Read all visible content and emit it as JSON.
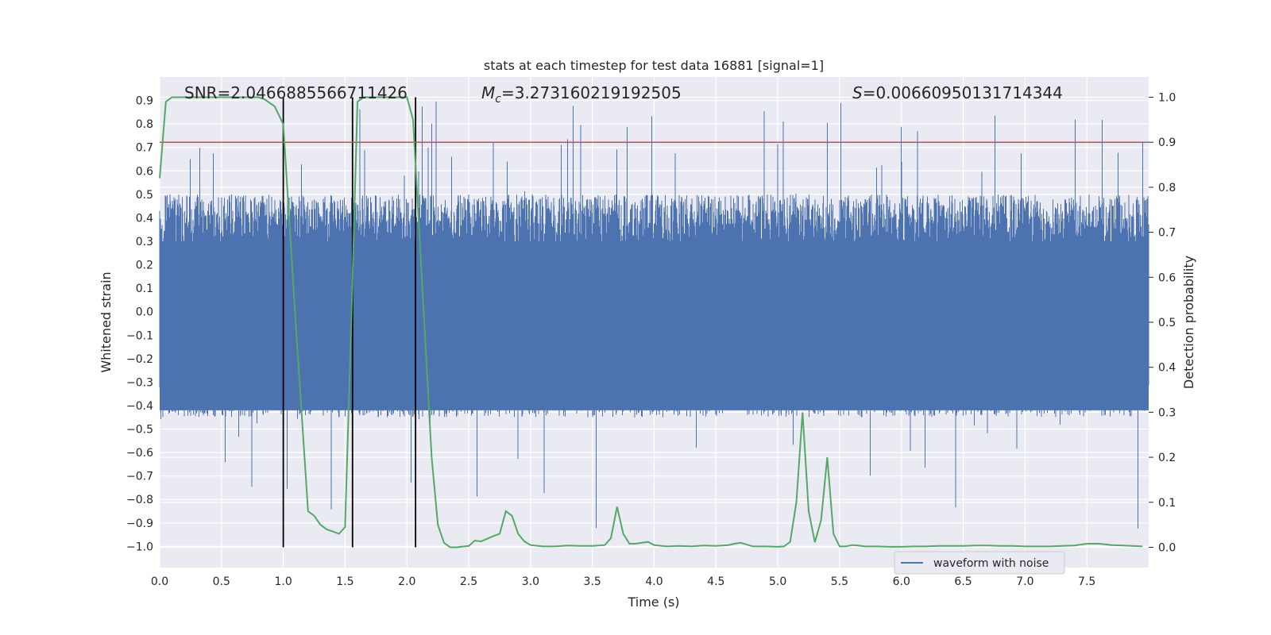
{
  "chart_data": {
    "type": "line",
    "title": "stats at each timestep for test data 16881 [signal=1]",
    "xlabel": "Time (s)",
    "ylabel": "Whitened strain",
    "y2label": "Detection probability",
    "xlim": [
      0.0,
      8.0
    ],
    "ylim": [
      -1.09,
      1.0
    ],
    "y2lim": [
      -0.045,
      1.045
    ],
    "xticks": [
      "0.0",
      "0.5",
      "1.0",
      "1.5",
      "2.0",
      "2.5",
      "3.0",
      "3.5",
      "4.0",
      "4.5",
      "5.0",
      "5.5",
      "6.0",
      "6.5",
      "7.0",
      "7.5"
    ],
    "yticks": [
      "0.9",
      "0.8",
      "0.7",
      "0.6",
      "0.5",
      "0.4",
      "0.3",
      "0.2",
      "0.1",
      "0.0",
      "−0.1",
      "−0.2",
      "−0.3",
      "−0.4",
      "−0.5",
      "−0.6",
      "−0.7",
      "−0.8",
      "−0.9",
      "−1.0"
    ],
    "y2ticks": [
      "1.0",
      "0.9",
      "0.8",
      "0.7",
      "0.6",
      "0.5",
      "0.4",
      "0.3",
      "0.2",
      "0.1",
      "0.0"
    ],
    "grid": true,
    "legend": {
      "position": "lower-right",
      "entries": [
        "waveform with noise"
      ]
    },
    "annotations": {
      "snr": "SNR=2.0466885566711426",
      "mc_prefix": "M",
      "mc_sub": "c",
      "mc_value": "=3.273160219192505",
      "s_prefix": "S",
      "s_value": "=0.00660950131714344"
    },
    "threshold_probability": 0.9,
    "vertical_lines_x": [
      1.0,
      1.56,
      2.07
    ],
    "strain_envelope": {
      "typical_max": 0.5,
      "typical_min": -0.45,
      "peak_max": 0.9,
      "peak_min": -1.0
    },
    "series": [
      {
        "name": "waveform with noise",
        "color": "#4c72b0",
        "axis": "left"
      },
      {
        "color": "#55a868",
        "axis": "right",
        "x": [
          0.0,
          0.05,
          0.1,
          0.2,
          0.3,
          0.4,
          0.5,
          0.6,
          0.7,
          0.8,
          0.85,
          0.93,
          1.0,
          1.1,
          1.2,
          1.25,
          1.3,
          1.35,
          1.4,
          1.45,
          1.5,
          1.55,
          1.6,
          1.65,
          1.7,
          1.8,
          1.9,
          2.0,
          2.05,
          2.1,
          2.2,
          2.25,
          2.3,
          2.35,
          2.4,
          2.5,
          2.55,
          2.6,
          2.7,
          2.75,
          2.8,
          2.85,
          2.9,
          2.95,
          3.0,
          3.1,
          3.2,
          3.3,
          3.4,
          3.5,
          3.6,
          3.65,
          3.7,
          3.75,
          3.8,
          3.85,
          3.9,
          3.95,
          4.0,
          4.1,
          4.2,
          4.3,
          4.4,
          4.5,
          4.6,
          4.65,
          4.7,
          4.8,
          4.9,
          5.0,
          5.05,
          5.1,
          5.15,
          5.2,
          5.25,
          5.3,
          5.35,
          5.4,
          5.45,
          5.5,
          5.55,
          5.6,
          5.65,
          5.7,
          5.8,
          5.9,
          6.0,
          6.1,
          6.2,
          6.3,
          6.4,
          6.5,
          6.6,
          6.7,
          6.8,
          6.9,
          7.0,
          7.1,
          7.2,
          7.3,
          7.4,
          7.5,
          7.6,
          7.7,
          7.8,
          7.95
        ],
        "values": [
          0.82,
          0.99,
          1.0,
          1.0,
          1.0,
          1.0,
          1.0,
          1.0,
          1.0,
          1.0,
          0.995,
          0.98,
          0.94,
          0.5,
          0.08,
          0.07,
          0.05,
          0.04,
          0.035,
          0.03,
          0.045,
          0.5,
          0.99,
          1.0,
          1.0,
          1.0,
          1.0,
          1.0,
          0.95,
          0.7,
          0.2,
          0.05,
          0.01,
          0.0,
          0.0,
          0.003,
          0.015,
          0.013,
          0.025,
          0.03,
          0.08,
          0.07,
          0.03,
          0.013,
          0.005,
          0.002,
          0.002,
          0.004,
          0.003,
          0.003,
          0.005,
          0.02,
          0.09,
          0.03,
          0.008,
          0.008,
          0.01,
          0.012,
          0.005,
          0.002,
          0.003,
          0.002,
          0.004,
          0.003,
          0.005,
          0.008,
          0.01,
          0.002,
          0.002,
          0.001,
          0.002,
          0.012,
          0.1,
          0.3,
          0.08,
          0.011,
          0.06,
          0.2,
          0.03,
          0.002,
          0.002,
          0.005,
          0.004,
          0.002,
          0.002,
          0.001,
          0.001,
          0.002,
          0.002,
          0.003,
          0.003,
          0.003,
          0.004,
          0.004,
          0.003,
          0.003,
          0.002,
          0.002,
          0.002,
          0.003,
          0.004,
          0.008,
          0.008,
          0.005,
          0.004,
          0.002
        ]
      }
    ]
  }
}
